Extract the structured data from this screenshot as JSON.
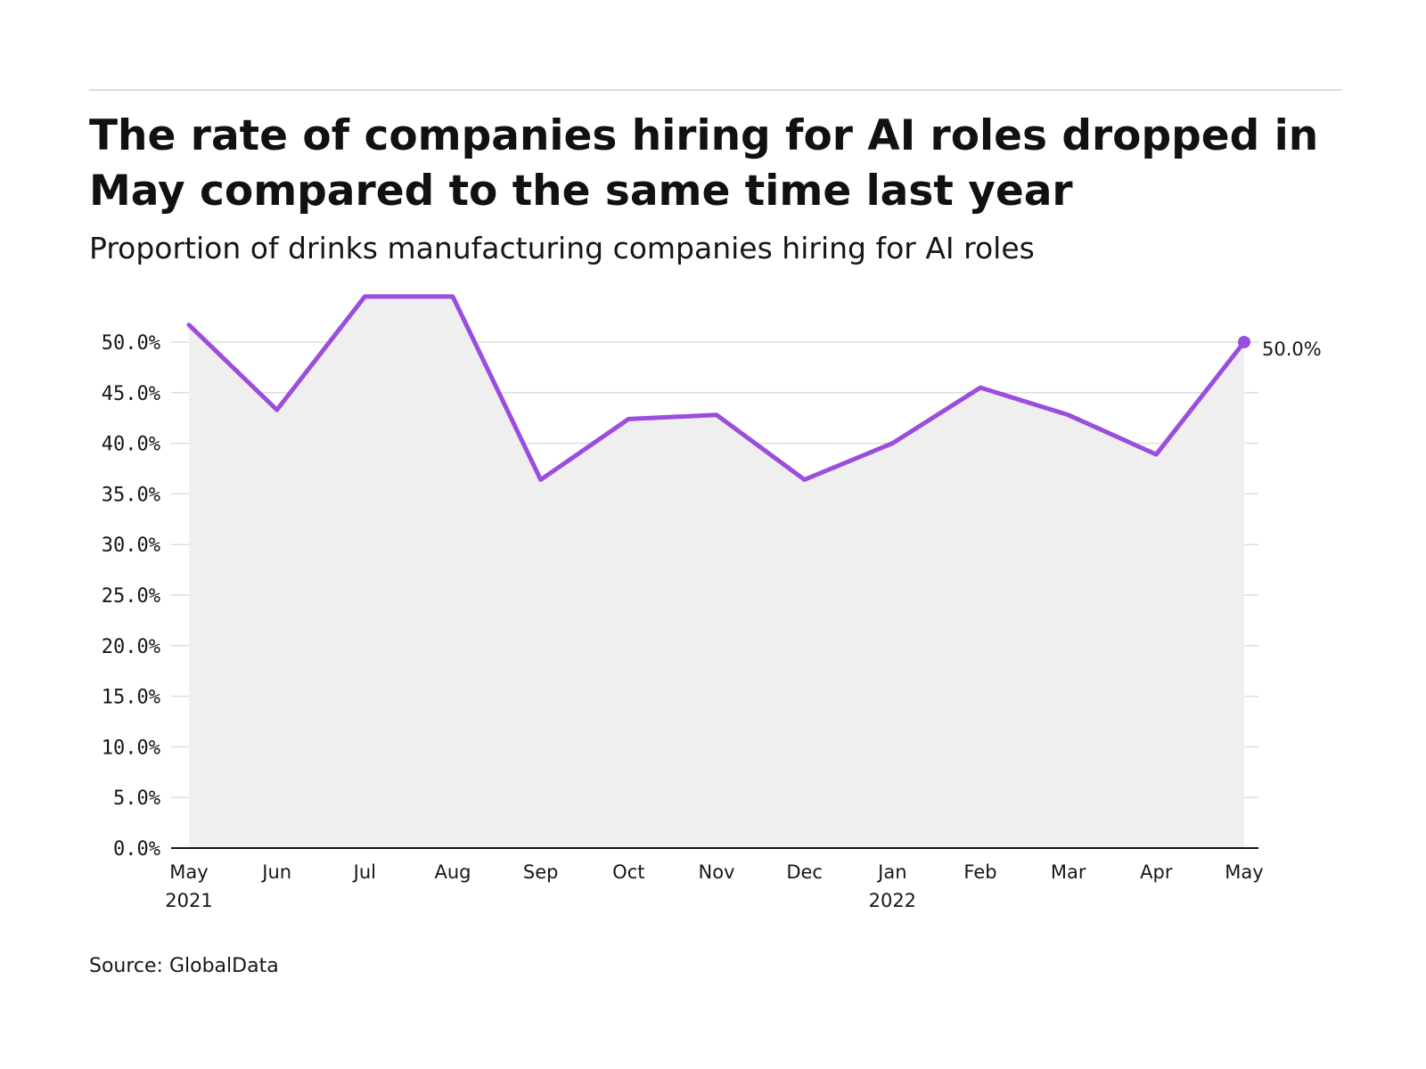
{
  "chart_data": {
    "type": "area",
    "title": "The rate of companies hiring for AI roles dropped in May compared to the same time last year",
    "subtitle": "Proportion of drinks manufacturing companies hiring for AI roles",
    "source": "Source: GlobalData",
    "series": [
      {
        "name": "Proportion of companies hiring for AI roles",
        "values": [
          51.7,
          43.3,
          54.5,
          54.5,
          36.4,
          42.4,
          42.8,
          36.4,
          40.0,
          45.5,
          42.8,
          38.9,
          50.0
        ],
        "color": "#9b4dde",
        "fill": "#efefef"
      }
    ],
    "categories": [
      "May",
      "Jun",
      "Jul",
      "Aug",
      "Sep",
      "Oct",
      "Nov",
      "Dec",
      "Jan",
      "Feb",
      "Mar",
      "Apr",
      "May"
    ],
    "category_sublabels": [
      "2021",
      "",
      "",
      "",
      "",
      "",
      "",
      "",
      "2022",
      "",
      "",
      "",
      ""
    ],
    "y_ticks": [
      0,
      5,
      10,
      15,
      20,
      25,
      30,
      35,
      40,
      45,
      50
    ],
    "y_tick_labels": [
      "0.0%",
      "5.0%",
      "10.0%",
      "15.0%",
      "20.0%",
      "25.0%",
      "30.0%",
      "35.0%",
      "40.0%",
      "45.0%",
      "50.0%"
    ],
    "ylim": [
      0,
      50
    ],
    "end_label": "50.0%",
    "grid": true,
    "xlabel": "",
    "ylabel": ""
  }
}
